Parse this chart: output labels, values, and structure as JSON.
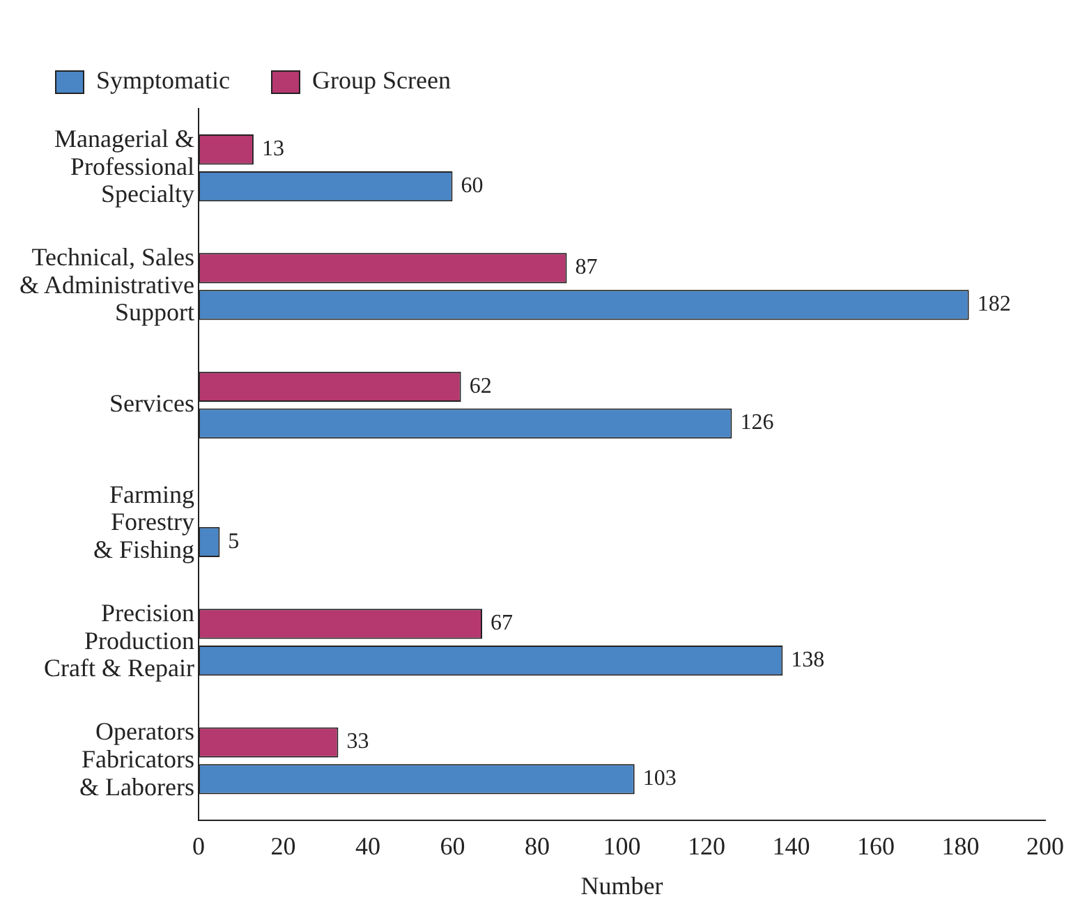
{
  "chart_data": {
    "type": "bar",
    "orientation": "horizontal",
    "xlabel": "Number",
    "categories": [
      "Managerial &\nProfessional\nSpecialty",
      "Technical, Sales\n& Administrative\nSupport",
      "Services",
      "Farming\nForestry\n& Fishing",
      "Precision\nProduction\nCraft & Repair",
      "Operators\nFabricators\n& Laborers"
    ],
    "series": [
      {
        "name": "Symptomatic",
        "color": "#4a86c6",
        "values": [
          60,
          182,
          126,
          5,
          138,
          103
        ]
      },
      {
        "name": "Group Screen",
        "color": "#b5386f",
        "values": [
          13,
          87,
          62,
          null,
          67,
          33
        ]
      }
    ],
    "xlim": [
      0,
      200
    ],
    "xticks": [
      0,
      20,
      40,
      60,
      80,
      100,
      120,
      140,
      160,
      180,
      200
    ],
    "grid": false,
    "legend": "top left",
    "data_labels": true
  }
}
